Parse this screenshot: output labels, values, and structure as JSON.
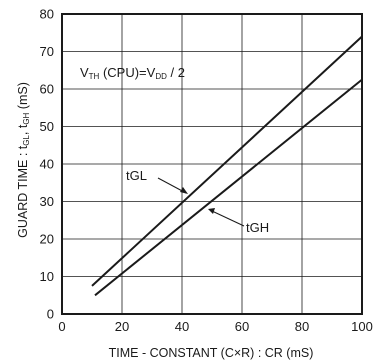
{
  "chart_data": {
    "type": "line",
    "title": "",
    "xlabel": "TIME - CONSTANT (C×R) : CR (mS)",
    "ylabel": "GUARD TIME : tGL, tGH (mS)",
    "ylabel_parts": {
      "main": "GUARD TIME : t",
      "sub1": "GL",
      "sep": ", t",
      "sub2": "GH",
      "unit": " (mS)"
    },
    "xlim": [
      0,
      100
    ],
    "ylim": [
      0,
      80
    ],
    "x_ticks": [
      0,
      20,
      40,
      60,
      80,
      100
    ],
    "y_ticks": [
      0,
      10,
      20,
      30,
      40,
      50,
      60,
      70,
      80
    ],
    "grid": true,
    "series": [
      {
        "name": "tGL",
        "x": [
          10,
          100
        ],
        "y": [
          7.5,
          74
        ]
      },
      {
        "name": "tGH",
        "x": [
          11,
          100
        ],
        "y": [
          5,
          62.5
        ]
      }
    ],
    "annotations": {
      "condition": {
        "p1": "V",
        "s1": "TH",
        "p2": " (CPU)=V",
        "s2": "DD",
        "p3": " / 2"
      },
      "tGL_label": "tGL",
      "tGH_label": "tGH"
    },
    "colors": {
      "line": "#1a1a1a",
      "grid": "#1a1a1a",
      "background": "#ffffff"
    }
  }
}
